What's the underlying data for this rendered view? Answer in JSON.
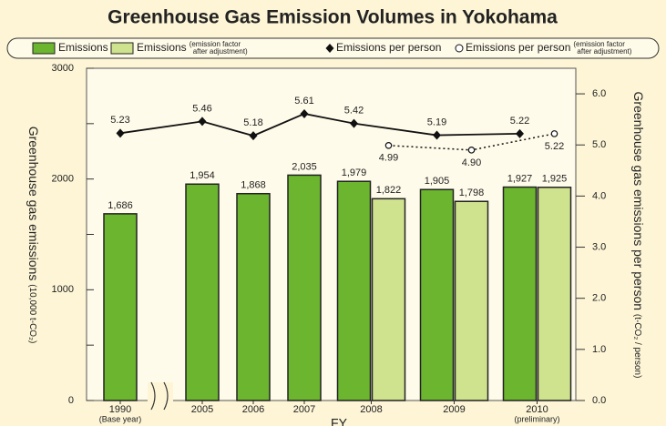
{
  "chart_data": {
    "type": "bar-line",
    "title": "Greenhouse Gas Emission Volumes in Yokohama",
    "x_label": "FY",
    "y_label": "Greenhouse gas emissions",
    "y_unit": "(10,000 t-CO₂)",
    "y2_label": "Greenhouse gas emissions per person",
    "y2_unit": "(t-CO₂ / person)",
    "categories": [
      "1990",
      "2005",
      "2006",
      "2007",
      "2008",
      "2009",
      "2010"
    ],
    "category_notes": [
      "(Base year)",
      null,
      null,
      null,
      null,
      null,
      "(preliminary)"
    ],
    "series": [
      {
        "name": "Emissions",
        "kind": "bar",
        "color": "#6bb52f",
        "values": [
          1686,
          1954,
          1868,
          2035,
          1979,
          1905,
          1927
        ],
        "value_labels": [
          "1,686",
          "1,954",
          "1,868",
          "2,035",
          "1,979",
          "1,905",
          "1,927"
        ]
      },
      {
        "name": "Emissions",
        "note": [
          "(emission factor",
          "after adjustment)"
        ],
        "kind": "bar",
        "color": "#cfe28e",
        "values": [
          null,
          null,
          null,
          null,
          1822,
          1798,
          1925
        ],
        "value_labels": [
          null,
          null,
          null,
          null,
          "1,822",
          "1,798",
          "1,925"
        ]
      },
      {
        "name": "Emissions per person",
        "kind": "line",
        "axis": "y2",
        "color": "#111111",
        "values": [
          5.23,
          5.46,
          5.18,
          5.61,
          5.42,
          5.19,
          5.22
        ],
        "value_labels": [
          "5.23",
          "5.46",
          "5.18",
          "5.61",
          "5.42",
          "5.19",
          "5.22"
        ]
      },
      {
        "name": "Emissions per person",
        "note": [
          "(emission factor",
          "after adjustment)"
        ],
        "kind": "dotted-line",
        "axis": "y2",
        "color": "#111111",
        "values": [
          null,
          null,
          null,
          null,
          4.99,
          4.9,
          5.22
        ],
        "value_labels": [
          null,
          null,
          null,
          null,
          "4.99",
          "4.90",
          "5.22"
        ]
      }
    ],
    "ylim": [
      0,
      3000
    ],
    "yticks": [
      0,
      1000,
      2000,
      3000
    ],
    "yminor": [
      500,
      1500,
      2500
    ],
    "y2lim": [
      0,
      6.5
    ],
    "y2ticks": [
      {
        "value": 0,
        "label": "0.0"
      },
      {
        "value": 1,
        "label": "1.0"
      },
      {
        "value": 2,
        "label": "2.0"
      },
      {
        "value": 3,
        "label": "3.0"
      },
      {
        "value": 4,
        "label": "4.0"
      },
      {
        "value": 5,
        "label": "5.0"
      },
      {
        "value": 6,
        "label": "6.0"
      }
    ]
  }
}
